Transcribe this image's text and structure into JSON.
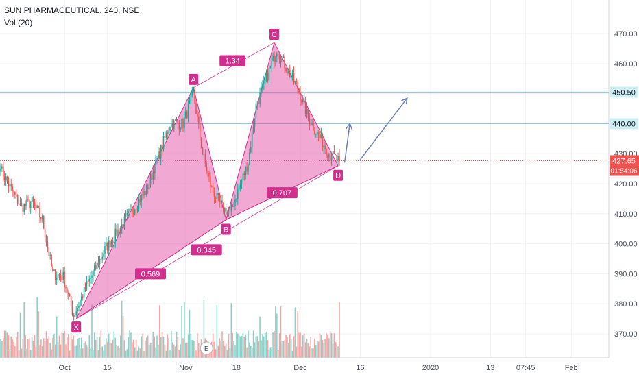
{
  "header": {
    "symbol_line": "SUN PHARMACEUTICAL, 240, NSE",
    "volume_indicator": "Vol (20)"
  },
  "colors": {
    "up": "#26a69a",
    "down": "#ef5350",
    "vol_up": "#8fd1c9",
    "vol_down": "#f4a6a4",
    "pattern_fill": "#e040a0",
    "pattern_stroke": "#d12e8d",
    "hline": "#7ec8d8",
    "arrow": "#6a7fb5",
    "last_price_line": "#ef5350",
    "grid": "#eef0f3",
    "axis_text": "#4a4f5a"
  },
  "chart_data": {
    "type": "candlestick",
    "title": "SUN PHARMACEUTICAL, 240, NSE",
    "ylim": [
      362,
      478
    ],
    "y_ticks": [
      370,
      380,
      390,
      400,
      410,
      420,
      430,
      440,
      450,
      460,
      470
    ],
    "y_tick_labels": [
      "370.00",
      "380.00",
      "390.00",
      "400.00",
      "410.00",
      "420.00",
      "430.00",
      "440.00",
      "450.00",
      "460.00",
      "470.00"
    ],
    "x_ticks": [
      {
        "bar": 49,
        "label": "Oct"
      },
      {
        "bar": 82,
        "label": "15"
      },
      {
        "bar": 142,
        "label": "Nov"
      },
      {
        "bar": 181,
        "label": "18"
      },
      {
        "bar": 230,
        "label": "Dec"
      },
      {
        "bar": 276,
        "label": "16"
      },
      {
        "bar": 330,
        "label": "2020"
      },
      {
        "bar": 376,
        "label": "13"
      },
      {
        "bar": 403,
        "label": "07:45"
      },
      {
        "bar": 438,
        "label": "Feb"
      }
    ],
    "bars_total": 468,
    "first_close": 425,
    "last_close": 427.65,
    "last_price_label": "427.65",
    "countdown_label": "01:54:06",
    "waypoints": [
      {
        "bar": 0,
        "price": 425
      },
      {
        "bar": 8,
        "price": 418
      },
      {
        "bar": 16,
        "price": 412
      },
      {
        "bar": 24,
        "price": 414
      },
      {
        "bar": 32,
        "price": 408
      },
      {
        "bar": 40,
        "price": 390
      },
      {
        "bar": 48,
        "price": 389
      },
      {
        "bar": 56,
        "price": 376
      },
      {
        "bar": 66,
        "price": 386
      },
      {
        "bar": 80,
        "price": 398
      },
      {
        "bar": 96,
        "price": 408
      },
      {
        "bar": 112,
        "price": 418
      },
      {
        "bar": 130,
        "price": 440
      },
      {
        "bar": 140,
        "price": 440
      },
      {
        "bar": 148,
        "price": 450
      },
      {
        "bar": 155,
        "price": 430
      },
      {
        "bar": 162,
        "price": 418
      },
      {
        "bar": 170,
        "price": 412
      },
      {
        "bar": 176,
        "price": 410
      },
      {
        "bar": 184,
        "price": 420
      },
      {
        "bar": 190,
        "price": 427
      },
      {
        "bar": 196,
        "price": 446
      },
      {
        "bar": 204,
        "price": 455
      },
      {
        "bar": 212,
        "price": 465
      },
      {
        "bar": 220,
        "price": 458
      },
      {
        "bar": 228,
        "price": 452
      },
      {
        "bar": 236,
        "price": 442
      },
      {
        "bar": 244,
        "price": 436
      },
      {
        "bar": 252,
        "price": 430
      },
      {
        "bar": 260,
        "price": 427.65
      }
    ],
    "harmonic_pattern": {
      "points": [
        {
          "name": "X",
          "bar": 58,
          "price": 375
        },
        {
          "name": "A",
          "bar": 148,
          "price": 452
        },
        {
          "name": "B",
          "bar": 173,
          "price": 408
        },
        {
          "name": "C",
          "bar": 210,
          "price": 467
        },
        {
          "name": "D",
          "bar": 259,
          "price": 426
        }
      ],
      "ratios": [
        {
          "label": "1.34",
          "bar": 178,
          "price": 461
        },
        {
          "label": "0.345",
          "bar": 158,
          "price": 398
        },
        {
          "label": "0.707",
          "bar": 216,
          "price": 417
        },
        {
          "label": "0.569",
          "bar": 115,
          "price": 390
        }
      ]
    },
    "horizontal_lines": [
      {
        "price": 450.5,
        "label": "450.50"
      },
      {
        "price": 440,
        "label": "440.00"
      }
    ],
    "arrows": [
      {
        "from": [
          264,
          427
        ],
        "to": [
          268,
          440
        ]
      },
      {
        "from": [
          276,
          428
        ],
        "to": [
          312,
          448.5
        ]
      }
    ],
    "event_marker": {
      "bar": 158,
      "label": "E"
    }
  }
}
